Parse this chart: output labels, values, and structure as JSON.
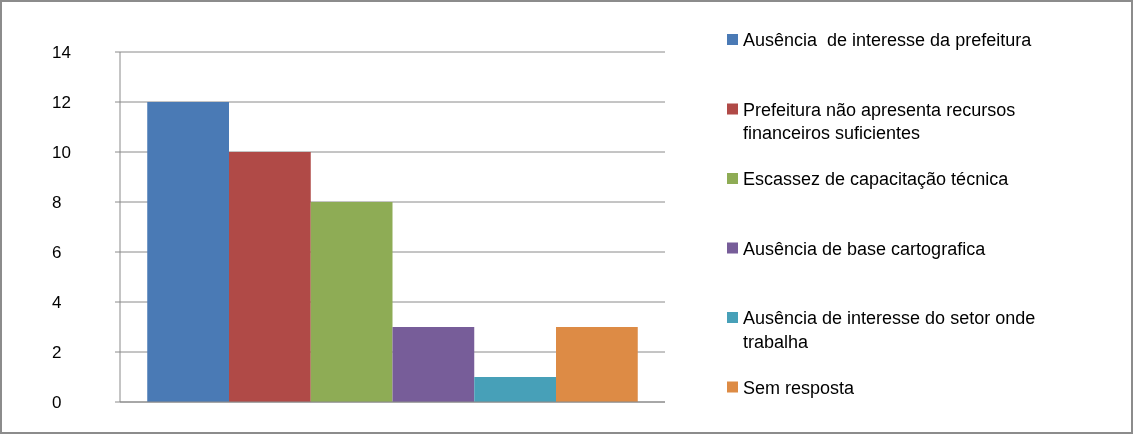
{
  "chart_data": {
    "type": "bar",
    "categories": [
      null
    ],
    "series": [
      {
        "name": "Ausência  de interesse da prefeitura",
        "color": "#4a7ab5",
        "values": [
          12
        ]
      },
      {
        "name": "Prefeitura não apresenta recursos financeiros suficientes",
        "color": "#b04a47",
        "values": [
          10
        ]
      },
      {
        "name": "Escassez de capacitação técnica",
        "color": "#8eac55",
        "values": [
          8
        ]
      },
      {
        "name": "Ausência de base cartografica",
        "color": "#775d99",
        "values": [
          3
        ]
      },
      {
        "name": "Ausência de interesse do setor onde trabalha",
        "color": "#47a0b8",
        "values": [
          1
        ]
      },
      {
        "name": "Sem resposta",
        "color": "#dd8b45",
        "values": [
          3
        ]
      }
    ],
    "ylim": [
      0,
      14
    ],
    "yticks": [
      0,
      2,
      4,
      6,
      8,
      10,
      12,
      14
    ],
    "grid": "y",
    "legend": "right"
  }
}
